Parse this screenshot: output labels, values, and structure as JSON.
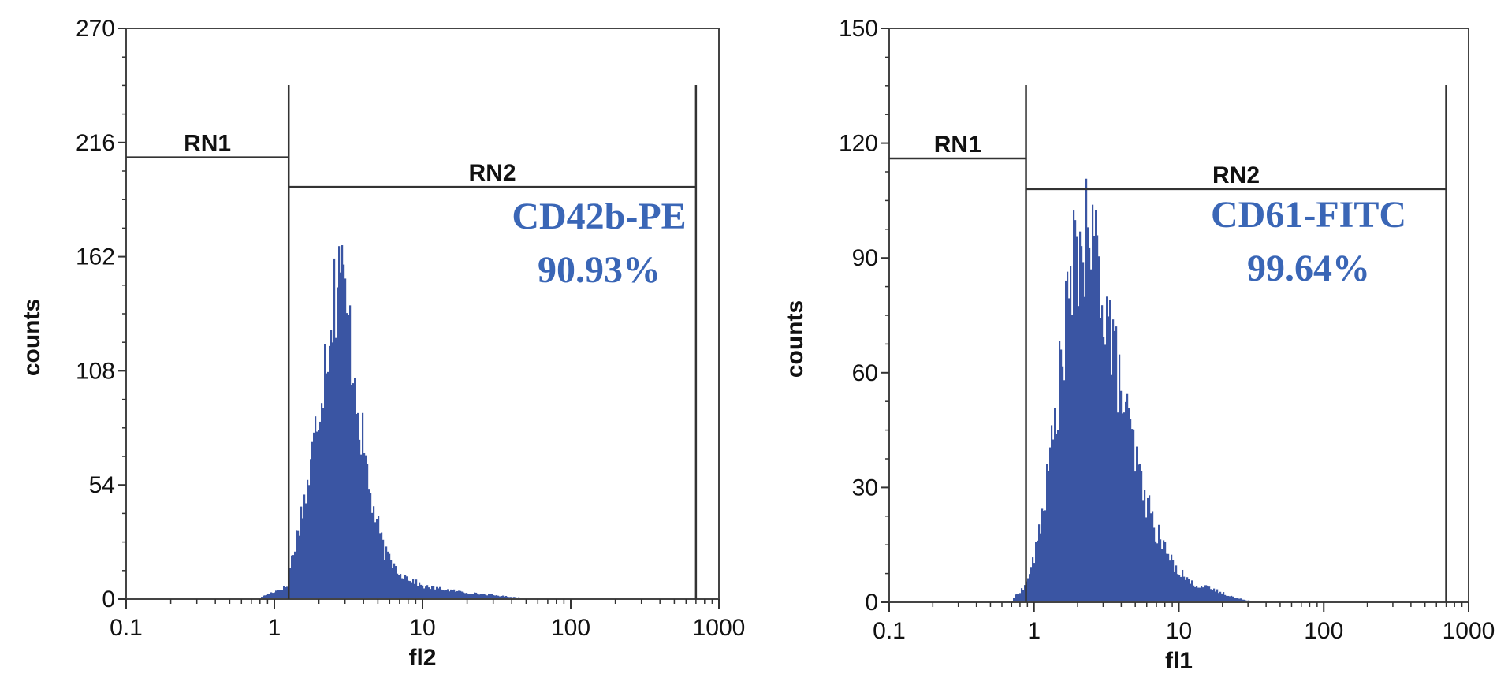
{
  "chart_data": [
    {
      "type": "histogram",
      "xlabel": "fl2",
      "ylabel": "counts",
      "xscale": "log",
      "xlim": [
        0.1,
        1000
      ],
      "ylim": [
        0,
        270
      ],
      "x_ticks": [
        0.1,
        1,
        10,
        100,
        1000
      ],
      "x_tick_labels": [
        "0.1",
        "1",
        "10",
        "100",
        "1000"
      ],
      "y_ticks": [
        0,
        54,
        108,
        162,
        216,
        270
      ],
      "y_tick_labels": [
        "0",
        "54",
        "108",
        "162",
        "216",
        "270"
      ],
      "bar_color": "#3a55a3",
      "annotation_color": "#3a66b6",
      "grid": false,
      "gates": [
        {
          "label": "RN1",
          "x_start": 0.1,
          "x_end": 1.25,
          "level": 209
        },
        {
          "label": "RN2",
          "x_start": 1.25,
          "x_end": 700,
          "level": 195
        }
      ],
      "annotation": {
        "marker": "CD42b-PE",
        "percent": "90.93%"
      },
      "distribution": {
        "peak_x": 2.7,
        "peak_counts": 167,
        "lower_bound": 1.25,
        "approx_points": [
          [
            0.8,
            1
          ],
          [
            1.2,
            6
          ],
          [
            1.3,
            20
          ],
          [
            1.5,
            40
          ],
          [
            1.7,
            58
          ],
          [
            2.0,
            95
          ],
          [
            2.3,
            128
          ],
          [
            2.6,
            150
          ],
          [
            2.7,
            167
          ],
          [
            2.9,
            145
          ],
          [
            3.3,
            118
          ],
          [
            3.8,
            80
          ],
          [
            4.5,
            45
          ],
          [
            5.5,
            22
          ],
          [
            7,
            12
          ],
          [
            10,
            6
          ],
          [
            20,
            3
          ],
          [
            40,
            1
          ],
          [
            60,
            0
          ]
        ]
      }
    },
    {
      "type": "histogram",
      "xlabel": "fl1",
      "ylabel": "counts",
      "xscale": "log",
      "xlim": [
        0.1,
        1000
      ],
      "ylim": [
        0,
        150
      ],
      "x_ticks": [
        0.1,
        1,
        10,
        100,
        1000
      ],
      "x_tick_labels": [
        "0.1",
        "1",
        "10",
        "100",
        "1000"
      ],
      "y_ticks": [
        0,
        30,
        60,
        90,
        120,
        150
      ],
      "y_tick_labels": [
        "0",
        "30",
        "60",
        "90",
        "120",
        "150"
      ],
      "bar_color": "#3a55a3",
      "annotation_color": "#3a66b6",
      "grid": false,
      "gates": [
        {
          "label": "RN1",
          "x_start": 0.1,
          "x_end": 0.88,
          "level": 116
        },
        {
          "label": "RN2",
          "x_start": 0.88,
          "x_end": 700,
          "level": 108
        }
      ],
      "annotation": {
        "marker": "CD61-FITC",
        "percent": "99.64%"
      },
      "distribution": {
        "peak_x": 2.3,
        "peak_counts": 98,
        "lower_bound": 0.85,
        "approx_points": [
          [
            0.7,
            1
          ],
          [
            0.85,
            4
          ],
          [
            1.0,
            12
          ],
          [
            1.2,
            30
          ],
          [
            1.4,
            50
          ],
          [
            1.6,
            70
          ],
          [
            1.8,
            85
          ],
          [
            2.0,
            92
          ],
          [
            2.3,
            96
          ],
          [
            2.7,
            90
          ],
          [
            3.2,
            75
          ],
          [
            3.8,
            58
          ],
          [
            4.5,
            45
          ],
          [
            5.5,
            30
          ],
          [
            7,
            18
          ],
          [
            9,
            10
          ],
          [
            12,
            5
          ],
          [
            18,
            3
          ],
          [
            25,
            1
          ],
          [
            35,
            0
          ]
        ]
      }
    }
  ]
}
